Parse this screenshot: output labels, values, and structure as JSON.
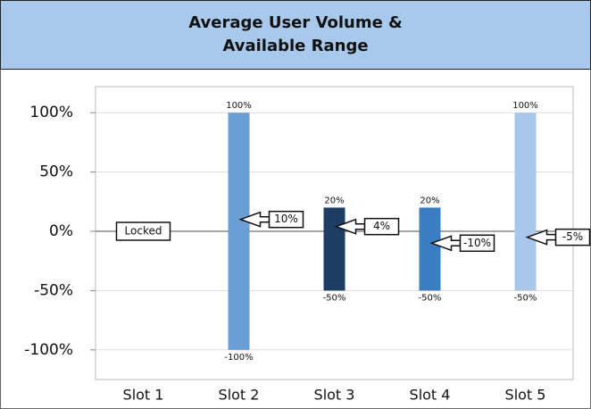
{
  "chart_data": {
    "type": "floating_range",
    "title_lines": [
      "Average User Volume &",
      "Available Range"
    ],
    "categories": [
      "Slot 1",
      "Slot 2",
      "Slot 3",
      "Slot 4",
      "Slot 5"
    ],
    "series": [
      {
        "values": [
          null,
          100,
          20,
          20,
          100
        ],
        "value_labels": [
          null,
          "100%",
          "20%",
          "20%",
          "100%"
        ]
      },
      {
        "values": [
          null,
          -100,
          -50,
          -50,
          -50
        ],
        "value_labels": [
          null,
          "-100%",
          "-50%",
          "-50%",
          "-50%"
        ]
      },
      {
        "values": [
          null,
          10,
          4,
          -10,
          -5
        ],
        "value_labels": [
          null,
          "10%",
          "4%",
          "-10%",
          "-5%"
        ]
      }
    ],
    "colors": [
      null,
      "#6a9fd6",
      "#1e3d63",
      "#3a7dc2",
      "#a8c7ea"
    ],
    "annotations": [
      {
        "text": "Locked",
        "x": "Slot 1",
        "y": 0
      }
    ],
    "ylim": [
      -125,
      122
    ],
    "yticks": [
      {
        "value": 100,
        "label": "100%"
      },
      {
        "value": 50,
        "label": "50%"
      },
      {
        "value": 0,
        "label": "0%"
      },
      {
        "value": -50,
        "label": "-50%"
      },
      {
        "value": -100,
        "label": "-100%"
      }
    ],
    "grid": true
  }
}
